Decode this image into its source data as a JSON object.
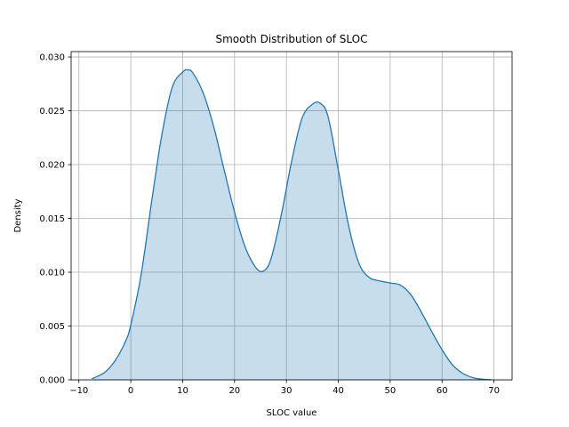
{
  "chart_data": {
    "type": "area",
    "title": "Smooth Distribution of SLOC",
    "xlabel": "SLOC value",
    "ylabel": "Density",
    "xlim": [
      -11.5,
      73.5
    ],
    "ylim": [
      0,
      0.0305
    ],
    "xticks": [
      -10,
      0,
      10,
      20,
      30,
      40,
      50,
      60,
      70
    ],
    "xtick_labels": [
      "−10",
      "0",
      "10",
      "20",
      "30",
      "40",
      "50",
      "60",
      "70"
    ],
    "yticks": [
      0,
      0.005,
      0.01,
      0.015,
      0.02,
      0.025,
      0.03
    ],
    "ytick_labels": [
      "0.000",
      "0.005",
      "0.010",
      "0.015",
      "0.020",
      "0.025",
      "0.030"
    ],
    "grid": true,
    "series": [
      {
        "color": "#1f77b4",
        "fill_color": "#1f77b4",
        "fill_opacity": 0.25,
        "x": [
          -7.5,
          -5,
          -3,
          -1,
          0,
          2,
          4,
          6,
          8,
          10,
          11,
          12,
          14,
          16,
          18,
          20,
          22,
          24,
          25.5,
          27,
          29,
          31,
          33,
          35,
          36.5,
          38,
          40,
          42,
          44,
          46,
          48,
          50,
          52,
          54,
          56,
          58,
          60,
          62,
          64,
          66,
          68,
          69.5
        ],
        "y": [
          0.0001,
          0.0007,
          0.0018,
          0.0036,
          0.0051,
          0.0098,
          0.0165,
          0.0228,
          0.0272,
          0.0286,
          0.0288,
          0.0285,
          0.0266,
          0.0235,
          0.0195,
          0.0156,
          0.0124,
          0.0105,
          0.0101,
          0.0112,
          0.0153,
          0.0203,
          0.0243,
          0.0256,
          0.0257,
          0.0245,
          0.0195,
          0.0143,
          0.0108,
          0.0095,
          0.0092,
          0.009,
          0.0088,
          0.0079,
          0.0063,
          0.0045,
          0.0028,
          0.0014,
          0.0006,
          0.0002,
          5e-05,
          1e-05
        ]
      }
    ]
  }
}
